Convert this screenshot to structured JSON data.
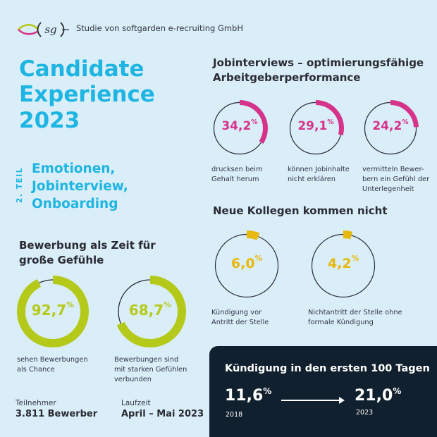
{
  "colors": {
    "background": "#d9eef9",
    "cyan": "#1fb5e3",
    "magenta": "#d6338a",
    "lime": "#b5c91a",
    "yellow": "#e7b80f",
    "dark": "#11202e",
    "text": "#2b2b33"
  },
  "header": {
    "logo_text": "sg",
    "study_text": "Studie von softgarden e-recruiting GmbH"
  },
  "hero": {
    "title_lines": [
      "Candidate",
      "Experience",
      "2023"
    ],
    "part_label": "2. TEIL",
    "subtitle_lines": [
      "Emotionen,",
      "Jobinterview,",
      "Onboarding"
    ]
  },
  "bewerbung": {
    "heading_lines": [
      "Bewerbung als Zeit für",
      "große Gefühle"
    ],
    "stats": [
      {
        "value": "92,7",
        "percent": 92.7,
        "unit": "%",
        "caption_lines": [
          "sehen Bewerbungen",
          "als Chance"
        ]
      },
      {
        "value": "68,7",
        "percent": 68.7,
        "unit": "%",
        "caption_lines": [
          "Bewerbungen sind",
          "mit starken Gefühlen",
          "verbunden"
        ]
      }
    ]
  },
  "jobinterviews": {
    "heading_lines": [
      "Jobinterviews – optimierungsfähige",
      "Arbeitgeberperformance"
    ],
    "stats": [
      {
        "value": "34,2",
        "percent": 34.2,
        "unit": "%",
        "caption_lines": [
          "drucksen beim",
          "Gehalt herum"
        ]
      },
      {
        "value": "29,1",
        "percent": 29.1,
        "unit": "%",
        "caption_lines": [
          "können Jobinhalte",
          "nicht erklären"
        ]
      },
      {
        "value": "24,2",
        "percent": 24.2,
        "unit": "%",
        "caption_lines": [
          "vermitteln Bewer-",
          "bern ein Gefühl der",
          "Unterlegenheit"
        ]
      }
    ]
  },
  "kollegen": {
    "heading": "Neue Kollegen kommen nicht",
    "stats": [
      {
        "value": "6,0",
        "percent": 6.0,
        "unit": "%",
        "caption_lines": [
          "Kündigung vor",
          "Antritt der Stelle"
        ]
      },
      {
        "value": "4,2",
        "percent": 4.2,
        "unit": "%",
        "caption_lines": [
          "Nichtantritt der Stelle ohne",
          "formale Kündigung"
        ]
      }
    ]
  },
  "meta": {
    "participants_label": "Teilnehmer",
    "participants_value": "3.811 Bewerber",
    "period_label": "Laufzeit",
    "period_value": "April – Mai 2023"
  },
  "kuendigung": {
    "title": "Kündigung in den ersten 100 Tagen",
    "from_value": "11,6",
    "from_unit": "%",
    "from_year": "2018",
    "to_value": "21,0",
    "to_unit": "%",
    "to_year": "2023"
  }
}
